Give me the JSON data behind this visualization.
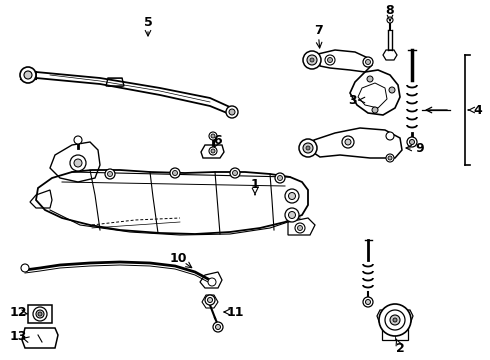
{
  "bg_color": "#ffffff",
  "fig_width": 4.9,
  "fig_height": 3.6,
  "dpi": 100,
  "lc": "black",
  "lw_main": 1.2,
  "lw_thin": 0.7
}
